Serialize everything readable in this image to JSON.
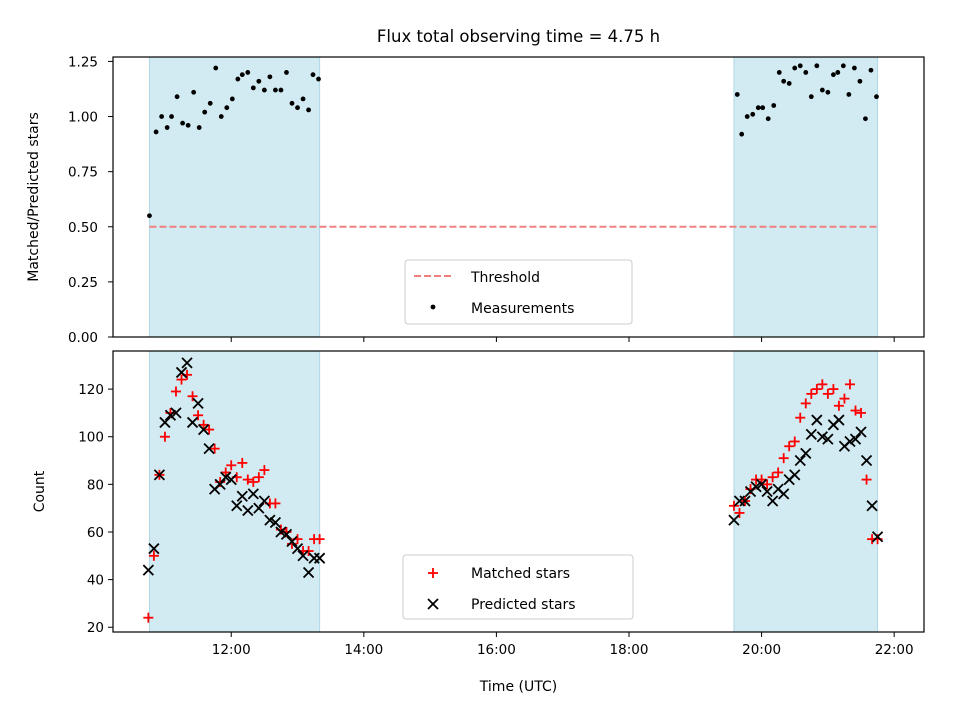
{
  "chart_data": [
    {
      "type": "scatter",
      "title": "Flux total observing time = 4.75 h",
      "xlabel": "",
      "ylabel": "Matched/Predicted stars",
      "xlim": [
        "10:13",
        "22:27"
      ],
      "ylim": [
        0,
        1.27
      ],
      "yticks": [
        "0.00",
        "0.25",
        "0.50",
        "0.75",
        "1.00",
        "1.25"
      ],
      "shaded_intervals": [
        [
          "10:46",
          "13:20"
        ],
        [
          "19:35",
          "21:45"
        ]
      ],
      "shade_color": "#add8e6",
      "legend_location": "lower center",
      "series": [
        {
          "name": "Threshold",
          "kind": "dashed-line",
          "color": "#f08080",
          "x": [
            "10:46",
            "21:45"
          ],
          "y": [
            0.5,
            0.5
          ]
        },
        {
          "name": "Measurements",
          "kind": "dots",
          "color": "#000000",
          "x": [
            "10:46",
            "10:52",
            "10:57",
            "11:02",
            "11:06",
            "11:11",
            "11:16",
            "11:21",
            "11:26",
            "11:31",
            "11:36",
            "11:41",
            "11:46",
            "11:51",
            "11:56",
            "12:01",
            "12:06",
            "12:10",
            "12:15",
            "12:20",
            "12:25",
            "12:30",
            "12:35",
            "12:40",
            "12:45",
            "12:50",
            "12:55",
            "13:00",
            "13:05",
            "13:10",
            "13:14",
            "13:19",
            "19:38",
            "19:42",
            "19:47",
            "19:52",
            "19:57",
            "20:01",
            "20:06",
            "20:11",
            "20:16",
            "20:20",
            "20:25",
            "20:30",
            "20:35",
            "20:40",
            "20:45",
            "20:50",
            "20:55",
            "21:00",
            "21:05",
            "21:09",
            "21:14",
            "21:19",
            "21:24",
            "21:29",
            "21:34",
            "21:39",
            "21:44"
          ],
          "y": [
            0.55,
            0.93,
            1.0,
            0.95,
            1.0,
            1.09,
            0.97,
            0.96,
            1.11,
            0.95,
            1.02,
            1.06,
            1.22,
            1.0,
            1.04,
            1.08,
            1.17,
            1.19,
            1.2,
            1.13,
            1.16,
            1.12,
            1.18,
            1.12,
            1.12,
            1.2,
            1.06,
            1.04,
            1.08,
            1.03,
            1.19,
            1.17,
            1.1,
            0.92,
            1.0,
            1.01,
            1.04,
            1.04,
            0.99,
            1.05,
            1.2,
            1.16,
            1.15,
            1.22,
            1.23,
            1.2,
            1.09,
            1.23,
            1.12,
            1.11,
            1.19,
            1.2,
            1.23,
            1.1,
            1.22,
            1.16,
            0.99,
            1.21,
            1.09
          ]
        }
      ]
    },
    {
      "type": "scatter",
      "title": "",
      "xlabel": "Time (UTC)",
      "ylabel": "Count",
      "xlim": [
        "10:13",
        "22:27"
      ],
      "xticks": [
        "12:00",
        "14:00",
        "16:00",
        "18:00",
        "20:00",
        "22:00"
      ],
      "ylim": [
        18,
        136
      ],
      "yticks": [
        "20",
        "40",
        "60",
        "80",
        "100",
        "120"
      ],
      "shaded_intervals": [
        [
          "10:46",
          "13:20"
        ],
        [
          "19:35",
          "21:45"
        ]
      ],
      "shade_color": "#add8e6",
      "legend_location": "lower center",
      "series": [
        {
          "name": "Matched stars",
          "marker": "plus",
          "color": "#ff0000",
          "x": [
            "10:45",
            "10:50",
            "10:55",
            "11:00",
            "11:05",
            "11:10",
            "11:15",
            "11:20",
            "11:25",
            "11:30",
            "11:35",
            "11:40",
            "11:45",
            "11:50",
            "11:55",
            "12:00",
            "12:05",
            "12:10",
            "12:15",
            "12:20",
            "12:25",
            "12:30",
            "12:35",
            "12:40",
            "12:45",
            "12:50",
            "12:55",
            "13:00",
            "13:05",
            "13:10",
            "13:15",
            "13:20",
            "19:35",
            "19:40",
            "19:45",
            "19:50",
            "19:55",
            "20:00",
            "20:05",
            "20:10",
            "20:15",
            "20:20",
            "20:25",
            "20:30",
            "20:35",
            "20:40",
            "20:45",
            "20:50",
            "20:55",
            "21:00",
            "21:05",
            "21:10",
            "21:15",
            "21:20",
            "21:25",
            "21:30",
            "21:35",
            "21:40",
            "21:45"
          ],
          "y": [
            24,
            50,
            84,
            100,
            110,
            119,
            124,
            126,
            117,
            109,
            105,
            103,
            95,
            81,
            85,
            88,
            83,
            89,
            82,
            81,
            83,
            86,
            72,
            72,
            61,
            60,
            55,
            57,
            52,
            52,
            57,
            57,
            71,
            68,
            73,
            78,
            82,
            82,
            80,
            83,
            85,
            91,
            96,
            98,
            108,
            114,
            118,
            120,
            122,
            118,
            120,
            113,
            116,
            122,
            111,
            110,
            82,
            57,
            57
          ]
        },
        {
          "name": "Predicted stars",
          "marker": "x",
          "color": "#000000",
          "x": [
            "10:45",
            "10:50",
            "10:55",
            "11:00",
            "11:05",
            "11:10",
            "11:15",
            "11:20",
            "11:25",
            "11:30",
            "11:35",
            "11:40",
            "11:45",
            "11:50",
            "11:55",
            "12:00",
            "12:05",
            "12:10",
            "12:15",
            "12:20",
            "12:25",
            "12:30",
            "12:35",
            "12:40",
            "12:45",
            "12:50",
            "12:55",
            "13:00",
            "13:05",
            "13:10",
            "13:15",
            "13:20",
            "19:35",
            "19:40",
            "19:45",
            "19:50",
            "19:55",
            "20:00",
            "20:05",
            "20:10",
            "20:15",
            "20:20",
            "20:25",
            "20:30",
            "20:35",
            "20:40",
            "20:45",
            "20:50",
            "20:55",
            "21:00",
            "21:05",
            "21:10",
            "21:15",
            "21:20",
            "21:25",
            "21:30",
            "21:35",
            "21:40",
            "21:45"
          ],
          "y": [
            44,
            53,
            84,
            106,
            109,
            110,
            127,
            131,
            106,
            114,
            103,
            95,
            78,
            80,
            83,
            82,
            71,
            75,
            69,
            76,
            70,
            73,
            65,
            64,
            60,
            59,
            56,
            53,
            50,
            43,
            49,
            49,
            65,
            73,
            73,
            77,
            79,
            80,
            77,
            73,
            78,
            76,
            82,
            84,
            90,
            93,
            101,
            107,
            100,
            99,
            105,
            107,
            96,
            98,
            99,
            102,
            90,
            71,
            58
          ]
        }
      ]
    }
  ]
}
